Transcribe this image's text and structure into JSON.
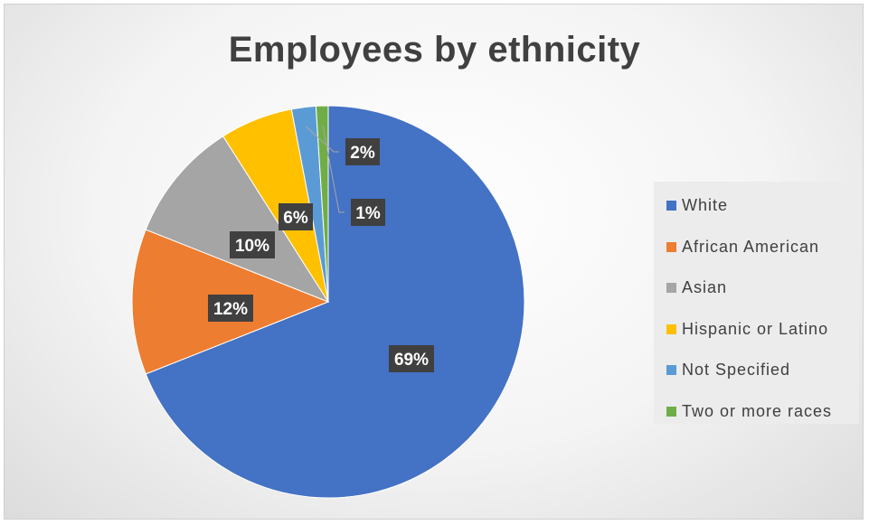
{
  "chart_data": {
    "type": "pie",
    "title": "Employees by ethnicity",
    "categories": [
      "White",
      "African American",
      "Asian",
      "Hispanic or Latino",
      "Not Specified",
      "Two or more races"
    ],
    "values": [
      69,
      12,
      10,
      6,
      2,
      1
    ],
    "data_labels": [
      "69%",
      "12%",
      "10%",
      "6%",
      "2%",
      "1%"
    ],
    "colors": [
      "#4472C4",
      "#ED7D31",
      "#A5A5A5",
      "#FFC000",
      "#5B9BD5",
      "#70AD47"
    ],
    "legend_position": "right",
    "start_angle": "12 o'clock",
    "direction": "clockwise"
  }
}
